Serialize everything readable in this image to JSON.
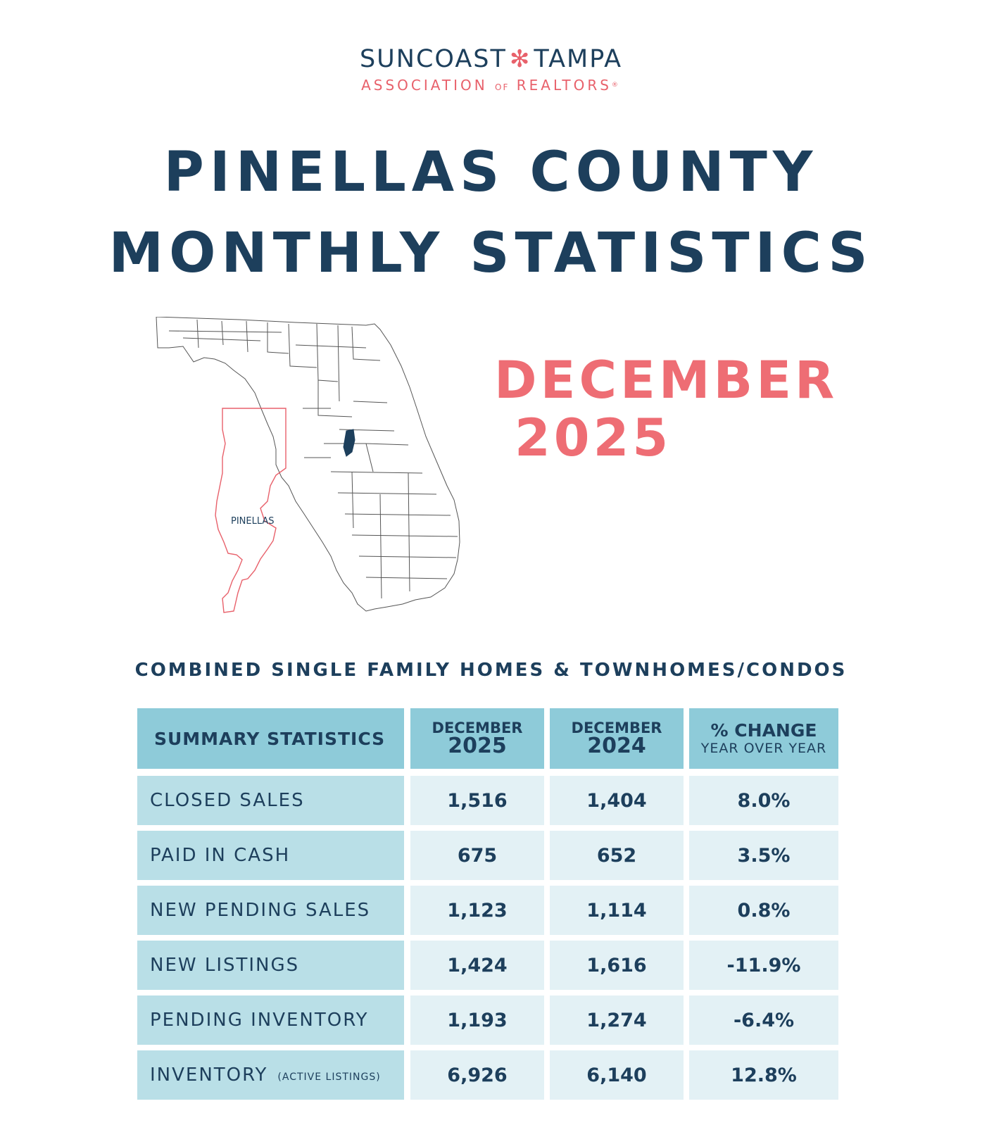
{
  "logo": {
    "line1_left": "SUNCOAST",
    "line1_right": "TAMPA",
    "line2_left": "ASSOCIATION",
    "line2_of": "OF",
    "line2_right": "REALTORS",
    "registered": "®",
    "star_color": "#e8616b"
  },
  "title": {
    "line1": "PINELLAS COUNTY",
    "line2": "MONTHLY STATISTICS"
  },
  "period": {
    "month": "DECEMBER",
    "year": "2025"
  },
  "map": {
    "inset_label": "PINELLAS",
    "highlight_color": "#1d3f5c",
    "inset_color": "#e8616b"
  },
  "subtitle": "COMBINED SINGLE FAMILY HOMES & TOWNHOMES/CONDOS",
  "table": {
    "header": {
      "label": "SUMMARY STATISTICS",
      "col1_month": "DECEMBER",
      "col1_year": "2025",
      "col2_month": "DECEMBER",
      "col2_year": "2024",
      "col3_title": "% CHANGE",
      "col3_sub": "YEAR OVER YEAR"
    },
    "rows": [
      {
        "label": "CLOSED SALES",
        "note": "",
        "v2025": "1,516",
        "v2024": "1,404",
        "change": "8.0%"
      },
      {
        "label": "PAID IN CASH",
        "note": "",
        "v2025": "675",
        "v2024": "652",
        "change": "3.5%"
      },
      {
        "label": "NEW PENDING SALES",
        "note": "",
        "v2025": "1,123",
        "v2024": "1,114",
        "change": "0.8%"
      },
      {
        "label": "NEW LISTINGS",
        "note": "",
        "v2025": "1,424",
        "v2024": "1,616",
        "change": "-11.9%"
      },
      {
        "label": "PENDING INVENTORY",
        "note": "",
        "v2025": "1,193",
        "v2024": "1,274",
        "change": "-6.4%"
      },
      {
        "label": "INVENTORY",
        "note": "(ACTIVE LISTINGS)",
        "v2025": "6,926",
        "v2024": "6,140",
        "change": "12.8%"
      }
    ]
  },
  "colors": {
    "navy": "#1d3f5c",
    "coral": "#ee6d74",
    "header_bg": "#8ecbd9",
    "label_bg": "#b9dfe7",
    "value_bg": "#e3f1f5"
  }
}
